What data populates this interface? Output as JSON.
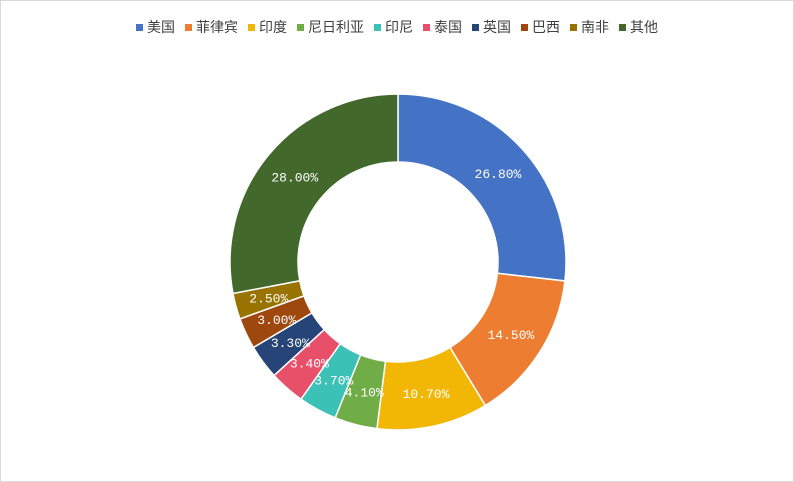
{
  "chart_data": {
    "type": "pie",
    "donut": true,
    "legend_position": "top",
    "categories": [
      "美国",
      "菲律宾",
      "印度",
      "尼日利亚",
      "印尼",
      "泰国",
      "英国",
      "巴西",
      "南非",
      "其他"
    ],
    "values": [
      26.8,
      14.5,
      10.7,
      4.1,
      3.7,
      3.4,
      3.3,
      3.0,
      2.5,
      28.0
    ],
    "labels": [
      "26.80%",
      "14.50%",
      "10.70%",
      "4.10%",
      "3.70%",
      "3.40%",
      "3.30%",
      "3.00%",
      "2.50%",
      "28.00%"
    ],
    "colors": [
      "#4472C4",
      "#ED7D31",
      "#F2B705",
      "#70AD47",
      "#3BC1B6",
      "#E8506A",
      "#264478",
      "#9E480E",
      "#997300",
      "#43682B"
    ]
  }
}
